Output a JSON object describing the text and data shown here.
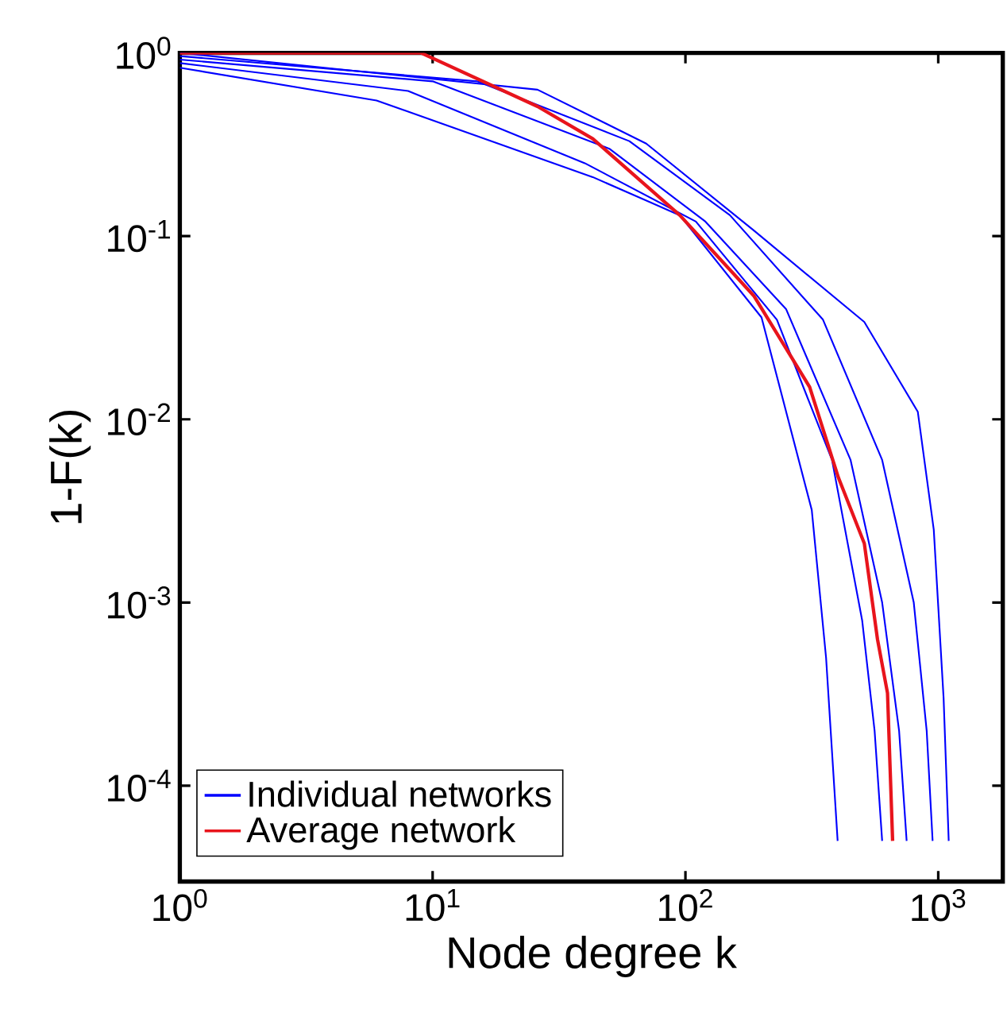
{
  "chart_data": {
    "type": "line",
    "xlabel": "Node degree k",
    "ylabel": "1-F(k)",
    "log": "xy",
    "xlim": [
      1,
      1800
    ],
    "ylim": [
      3e-05,
      1
    ],
    "xticks": [
      {
        "value": 1,
        "label": "10$^{0}$"
      },
      {
        "value": 10,
        "label": "10$^{1}$"
      },
      {
        "value": 100,
        "label": "10$^{2}$"
      },
      {
        "value": 1000,
        "label": "10$^{3}$"
      }
    ],
    "yticks": [
      {
        "value": 0.0001,
        "label": "10$^{-4}$"
      },
      {
        "value": 0.001,
        "label": "10$^{-3}$"
      },
      {
        "value": 0.01,
        "label": "10$^{-2}$"
      },
      {
        "value": 0.1,
        "label": "10$^{-1}$"
      },
      {
        "value": 1,
        "label": "10$^{0}$"
      }
    ],
    "legend": "bottom left",
    "grid": false,
    "marker": "none",
    "series": [
      {
        "name": "Individual networks",
        "color": "#0000ff",
        "x": [
          1,
          6,
          43,
          95,
          200,
          316,
          360,
          400
        ],
        "values": [
          0.83,
          0.55,
          0.21,
          0.13,
          0.036,
          0.0032,
          0.0005,
          5e-05
        ]
      },
      {
        "color": "#0000ff",
        "x": [
          1,
          8,
          40,
          110,
          230,
          380,
          500,
          560,
          600
        ],
        "values": [
          0.88,
          0.62,
          0.25,
          0.12,
          0.035,
          0.006,
          0.0008,
          0.0002,
          5e-05
        ]
      },
      {
        "color": "#0000ff",
        "x": [
          1,
          10,
          50,
          120,
          250,
          450,
          600,
          700,
          750
        ],
        "values": [
          0.92,
          0.7,
          0.3,
          0.12,
          0.04,
          0.006,
          0.001,
          0.0002,
          5e-05
        ]
      },
      {
        "color": "#0000ff",
        "x": [
          1,
          15,
          60,
          150,
          350,
          600,
          800,
          900,
          950
        ],
        "values": [
          0.96,
          0.7,
          0.33,
          0.13,
          0.035,
          0.006,
          0.001,
          0.0002,
          5e-05
        ]
      },
      {
        "color": "#0000ff",
        "x": [
          1,
          26,
          70,
          187,
          510,
          830,
          960,
          1050,
          1100
        ],
        "values": [
          1,
          0.63,
          0.32,
          0.107,
          0.034,
          0.011,
          0.0025,
          0.0003,
          5e-05
        ]
      },
      {
        "name": "Average network",
        "color": "#e8141c",
        "x": [
          1,
          9,
          26,
          43,
          95,
          187,
          310,
          403,
          510,
          575,
          630,
          660
        ],
        "values": [
          1,
          1,
          0.51,
          0.34,
          0.13,
          0.047,
          0.015,
          0.0048,
          0.0021,
          0.00063,
          0.00032,
          5e-05
        ]
      }
    ]
  }
}
